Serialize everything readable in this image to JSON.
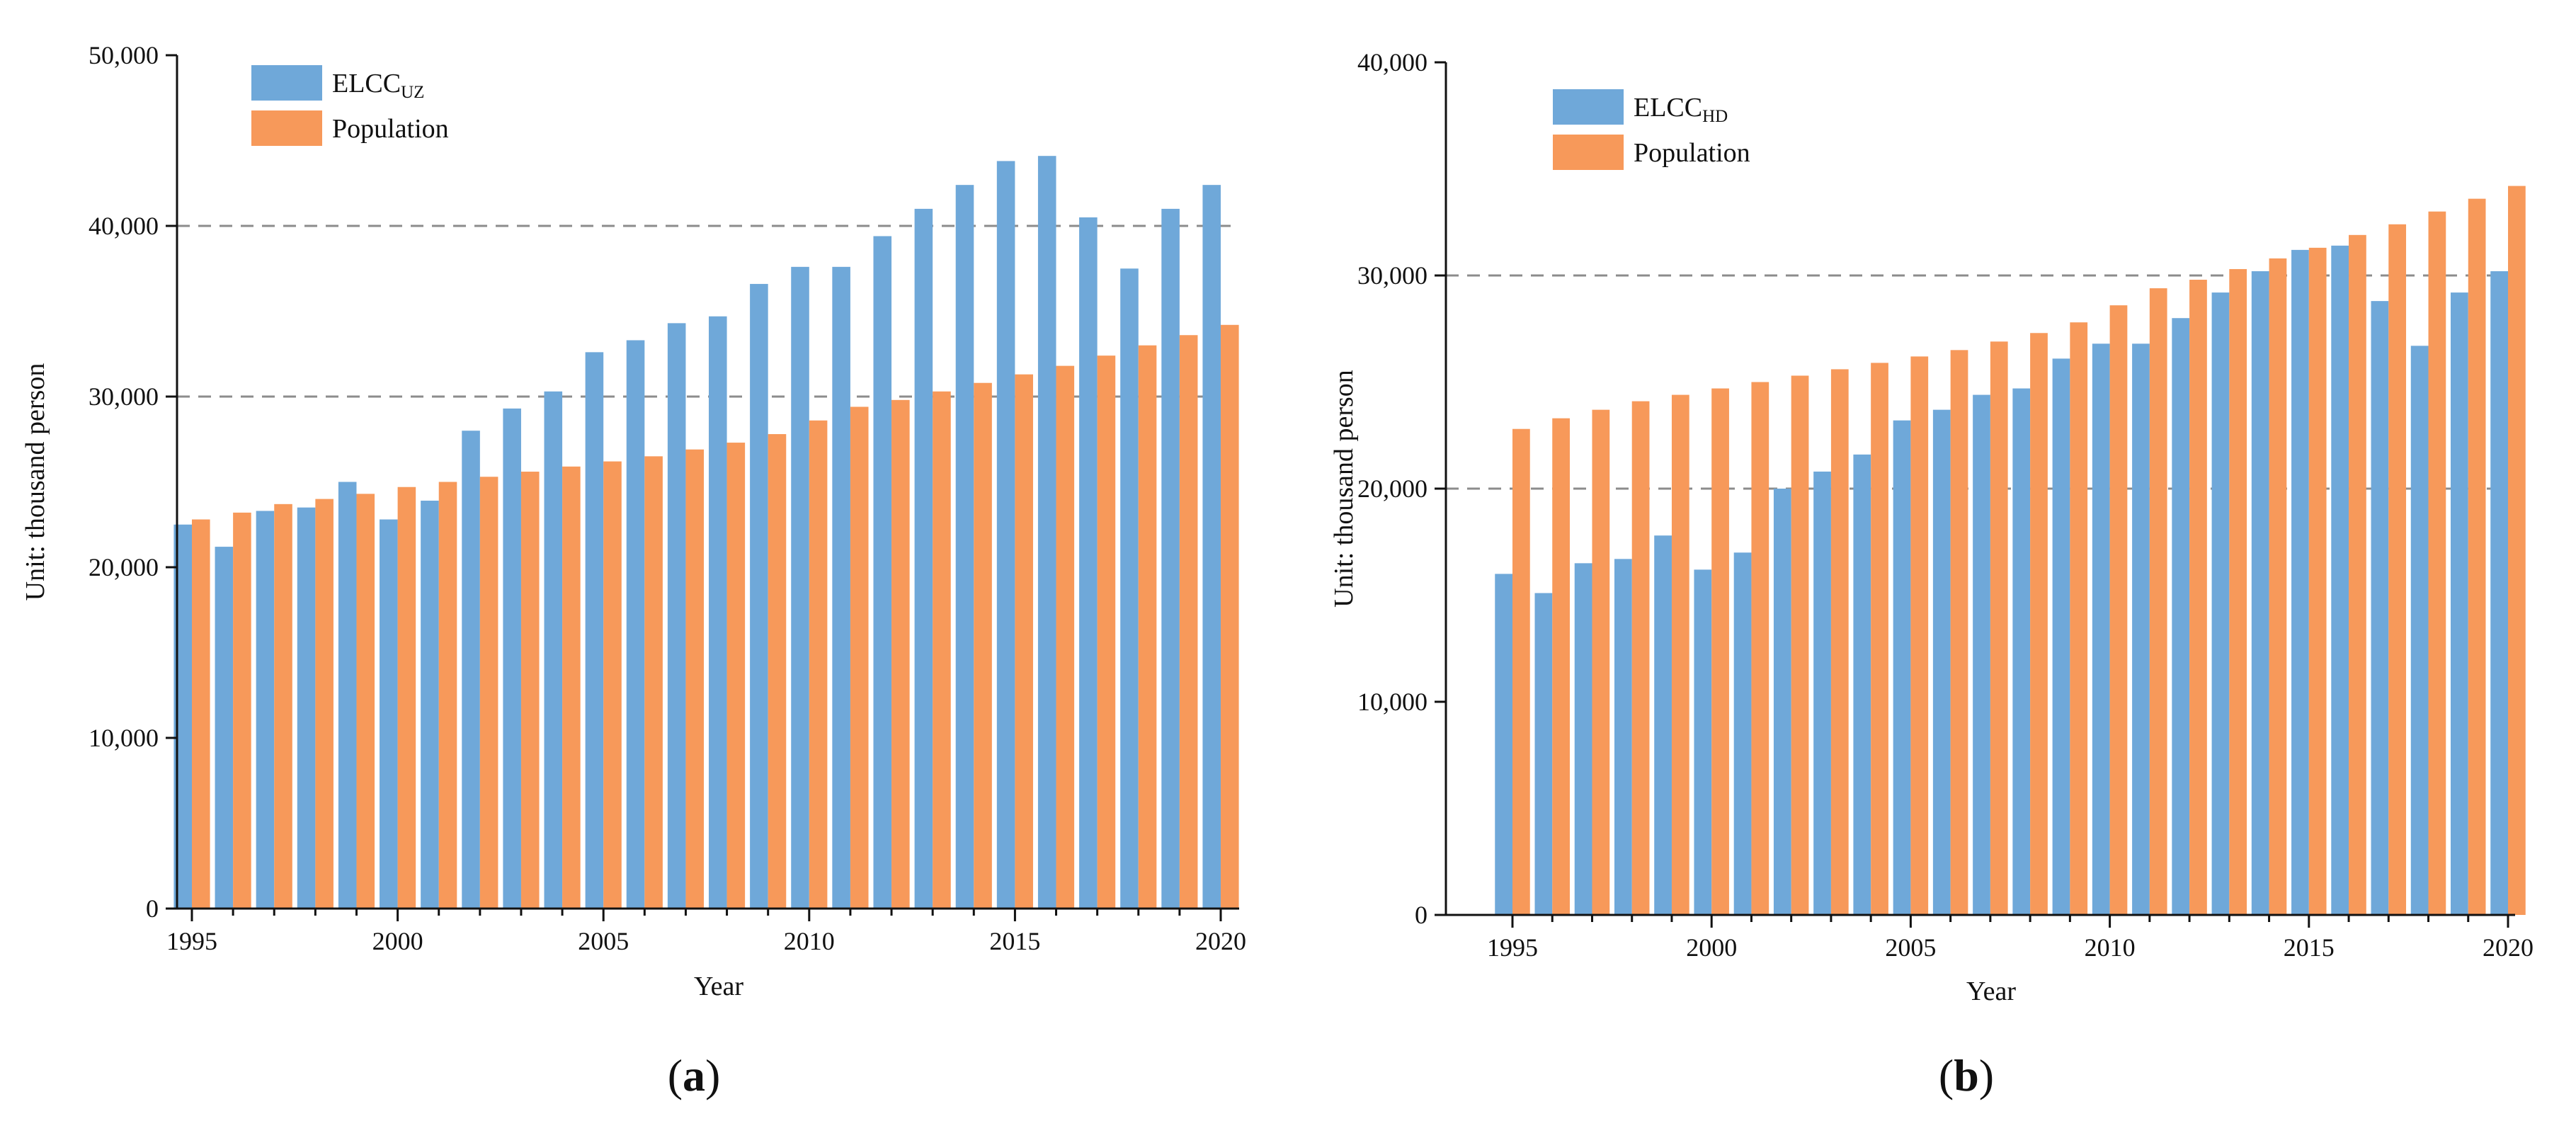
{
  "chart_data": [
    {
      "type": "bar",
      "panel_label": "a",
      "title": "",
      "xlabel": "Year",
      "ylabel": "Unit: thousand person",
      "ylim": [
        0,
        50000
      ],
      "yticks": [
        0,
        10000,
        20000,
        30000,
        40000,
        50000
      ],
      "ytick_labels": [
        "0",
        "10,000",
        "20,000",
        "30,000",
        "40,000",
        "50,000"
      ],
      "gridlines": [
        30000,
        40000
      ],
      "x": [
        1995,
        1996,
        1997,
        1998,
        1999,
        2000,
        2001,
        2002,
        2003,
        2004,
        2005,
        2006,
        2007,
        2008,
        2009,
        2010,
        2011,
        2012,
        2013,
        2014,
        2015,
        2016,
        2017,
        2018,
        2019,
        2020
      ],
      "xtick_labels": [
        "1995",
        "2000",
        "2005",
        "2010",
        "2015",
        "2020"
      ],
      "legend_position": "top-left",
      "series": [
        {
          "name": "ELCCUZ",
          "legend_main": "ELCC",
          "legend_sub": "UZ",
          "color": "#6fa8d9",
          "values": [
            22500,
            21200,
            23300,
            23500,
            25000,
            22800,
            23900,
            28000,
            29300,
            30300,
            32600,
            33300,
            34300,
            34700,
            36600,
            37600,
            37600,
            39400,
            41000,
            42400,
            43800,
            44100,
            40500,
            37500,
            41000,
            42400
          ]
        },
        {
          "name": "Population",
          "legend_main": "Population",
          "legend_sub": "",
          "color": "#f7995a",
          "values": [
            22800,
            23200,
            23700,
            24000,
            24300,
            24700,
            25000,
            25300,
            25600,
            25900,
            26200,
            26500,
            26900,
            27300,
            27800,
            28600,
            29400,
            29800,
            30300,
            30800,
            31300,
            31800,
            32400,
            33000,
            33600,
            34200
          ]
        }
      ]
    },
    {
      "type": "bar",
      "panel_label": "b",
      "title": "",
      "xlabel": "Year",
      "ylabel": "Unit: thousand person",
      "ylim": [
        0,
        40000
      ],
      "yticks": [
        0,
        10000,
        20000,
        30000,
        40000
      ],
      "ytick_labels": [
        "0",
        "10,000",
        "20,000",
        "30,000",
        "40,000"
      ],
      "gridlines": [
        20000,
        30000
      ],
      "x": [
        1995,
        1996,
        1997,
        1998,
        1999,
        2000,
        2001,
        2002,
        2003,
        2004,
        2005,
        2006,
        2007,
        2008,
        2009,
        2010,
        2011,
        2012,
        2013,
        2014,
        2015,
        2016,
        2017,
        2018,
        2019,
        2020
      ],
      "xtick_labels": [
        "1995",
        "2000",
        "2005",
        "2010",
        "2015",
        "2020"
      ],
      "legend_position": "top-left",
      "series": [
        {
          "name": "ELCCHD",
          "legend_main": "ELCC",
          "legend_sub": "HD",
          "color": "#6fa8d9",
          "values": [
            16000,
            15100,
            16500,
            16700,
            17800,
            16200,
            17000,
            20000,
            20800,
            21600,
            23200,
            23700,
            24400,
            24700,
            26100,
            26800,
            26800,
            28000,
            29200,
            30200,
            31200,
            31400,
            28800,
            26700,
            29200,
            30200
          ]
        },
        {
          "name": "Population",
          "legend_main": "Population",
          "legend_sub": "",
          "color": "#f7995a",
          "values": [
            22800,
            23300,
            23700,
            24100,
            24400,
            24700,
            25000,
            25300,
            25600,
            25900,
            26200,
            26500,
            26900,
            27300,
            27800,
            28600,
            29400,
            29800,
            30300,
            30800,
            31300,
            31900,
            32400,
            33000,
            33600,
            34200
          ]
        }
      ]
    }
  ]
}
